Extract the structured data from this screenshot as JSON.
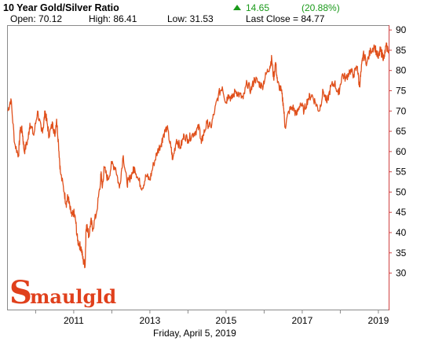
{
  "header": {
    "title": "10 Year Gold/Silver Ratio",
    "change_value": "14.65",
    "change_pct": "(20.88%)",
    "open": "Open: 70.12",
    "high": "High: 86.41",
    "low": "Low: 31.53",
    "last_close": "Last Close = 84.77"
  },
  "footer": {
    "date": "Friday, April  5, 2019"
  },
  "logo": {
    "big_s": "S",
    "rest": "maulgld"
  },
  "colors": {
    "line": "#e0501c",
    "up": "#1a9a1a",
    "axis": "#d04040",
    "frame": "#8a8a8a"
  },
  "chart_data": {
    "type": "line",
    "title": "10 Year Gold/Silver Ratio",
    "xlabel": "",
    "ylabel": "",
    "xlim": [
      2009.27,
      2019.27
    ],
    "ylim": [
      21,
      91
    ],
    "y_ticks": [
      30,
      35,
      40,
      45,
      50,
      55,
      60,
      65,
      70,
      75,
      80,
      85,
      90
    ],
    "x_ticks": [
      2011,
      2013,
      2015,
      2017,
      2019
    ],
    "x_tick_labels": [
      "2011",
      "2013",
      "2015",
      "2017",
      "2019"
    ],
    "y_axis_position": "right",
    "grid": false,
    "series": [
      {
        "name": "",
        "x": [
          2009.27,
          2009.35,
          2009.45,
          2009.55,
          2009.6,
          2009.65,
          2009.7,
          2009.8,
          2009.85,
          2009.95,
          2010.05,
          2010.15,
          2010.2,
          2010.25,
          2010.3,
          2010.35,
          2010.45,
          2010.5,
          2010.55,
          2010.6,
          2010.65,
          2010.75,
          2010.8,
          2010.85,
          2010.9,
          2010.95,
          2011.0,
          2011.05,
          2011.1,
          2011.15,
          2011.2,
          2011.25,
          2011.3,
          2011.32,
          2011.35,
          2011.4,
          2011.45,
          2011.5,
          2011.6,
          2011.7,
          2011.72,
          2011.75,
          2011.8,
          2011.9,
          2012.0,
          2012.1,
          2012.2,
          2012.3,
          2012.4,
          2012.45,
          2012.55,
          2012.6,
          2012.7,
          2012.8,
          2012.9,
          2013.0,
          2013.1,
          2013.2,
          2013.3,
          2013.35,
          2013.45,
          2013.55,
          2013.6,
          2013.7,
          2013.8,
          2013.9,
          2014.0,
          2014.1,
          2014.2,
          2014.3,
          2014.35,
          2014.4,
          2014.5,
          2014.6,
          2014.7,
          2014.8,
          2014.9,
          2015.0,
          2015.05,
          2015.15,
          2015.25,
          2015.35,
          2015.45,
          2015.55,
          2015.65,
          2015.75,
          2015.85,
          2015.95,
          2016.05,
          2016.15,
          2016.2,
          2016.25,
          2016.3,
          2016.35,
          2016.45,
          2016.5,
          2016.55,
          2016.65,
          2016.75,
          2016.85,
          2016.95,
          2017.05,
          2017.15,
          2017.25,
          2017.35,
          2017.45,
          2017.55,
          2017.65,
          2017.75,
          2017.85,
          2017.95,
          2018.05,
          2018.15,
          2018.25,
          2018.35,
          2018.45,
          2018.5,
          2018.55,
          2018.6,
          2018.7,
          2018.8,
          2018.9,
          2019.0,
          2019.05,
          2019.1,
          2019.15,
          2019.2,
          2019.27
        ],
        "y": [
          70,
          73,
          62,
          59,
          66,
          65,
          60,
          63,
          67,
          64,
          70,
          65,
          66,
          70,
          67,
          64,
          67,
          64,
          68,
          62,
          55,
          50,
          47,
          49,
          46,
          44,
          45,
          43,
          38,
          37,
          36,
          33,
          32,
          40,
          42,
          39,
          43,
          41,
          45,
          52,
          55,
          51,
          56,
          53,
          57,
          56,
          51,
          59,
          52,
          53,
          55,
          56,
          53,
          51,
          54,
          53,
          57,
          60,
          62,
          64,
          66,
          61,
          58,
          63,
          61,
          64,
          63,
          64,
          65,
          66,
          62,
          64,
          67,
          66,
          70,
          74,
          76,
          72,
          74,
          73,
          75,
          74,
          73,
          77,
          75,
          78,
          77,
          76,
          79,
          81,
          83,
          78,
          82,
          77,
          75,
          72,
          66,
          70,
          71,
          69,
          72,
          70,
          73,
          74,
          72,
          70,
          75,
          72,
          76,
          77,
          74,
          79,
          78,
          80,
          79,
          81,
          76,
          80,
          84,
          82,
          85,
          86,
          83,
          85,
          84,
          83,
          86,
          85
        ]
      }
    ]
  }
}
